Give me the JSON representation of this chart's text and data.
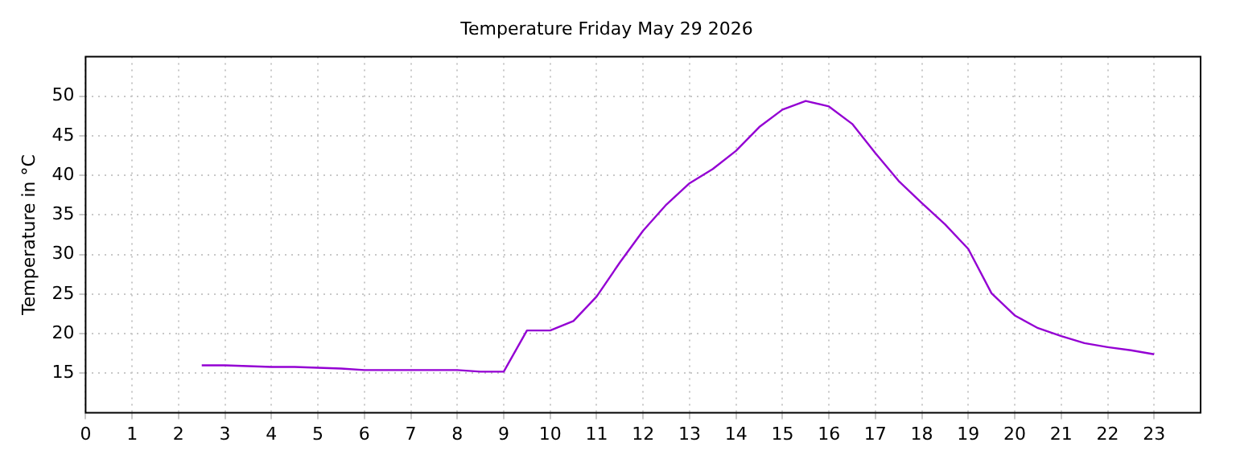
{
  "chart_data": {
    "type": "line",
    "title": "Temperature Friday May 29 2026",
    "ylabel": "Temperature in °C",
    "x": [
      2.5,
      3,
      3.5,
      4,
      4.5,
      5,
      5.5,
      6,
      6.5,
      7,
      7.5,
      8,
      8.5,
      9,
      9.5,
      10,
      10.5,
      11,
      11.5,
      12,
      12.5,
      13,
      13.5,
      14,
      14.5,
      15,
      15.5,
      16,
      16.5,
      17,
      17.5,
      18,
      18.5,
      19,
      19.5,
      20,
      20.5,
      21,
      21.5,
      22,
      22.5,
      23
    ],
    "series": [
      {
        "color": "#9400d3",
        "values": [
          16.0,
          16.0,
          15.9,
          15.8,
          15.8,
          15.7,
          15.6,
          15.4,
          15.4,
          15.4,
          15.4,
          15.4,
          15.2,
          15.2,
          20.4,
          20.4,
          21.6,
          24.7,
          29.0,
          33.0,
          36.3,
          39.0,
          40.8,
          43.1,
          46.1,
          48.3,
          49.4,
          48.7,
          46.5,
          42.8,
          39.3,
          36.5,
          33.8,
          30.7,
          25.1,
          22.3,
          20.7,
          19.7,
          18.8,
          18.3,
          17.9,
          17.4
        ]
      }
    ],
    "xlim": [
      0,
      24
    ],
    "xticks": [
      0,
      1,
      2,
      3,
      4,
      5,
      6,
      7,
      8,
      9,
      10,
      11,
      12,
      13,
      14,
      15,
      16,
      17,
      18,
      19,
      20,
      21,
      22,
      23
    ],
    "ylim": [
      10,
      55
    ],
    "yticks": [
      15,
      20,
      25,
      30,
      35,
      40,
      45,
      50
    ],
    "grid": true,
    "legend": false,
    "marker": "none",
    "line_style": "solid"
  }
}
